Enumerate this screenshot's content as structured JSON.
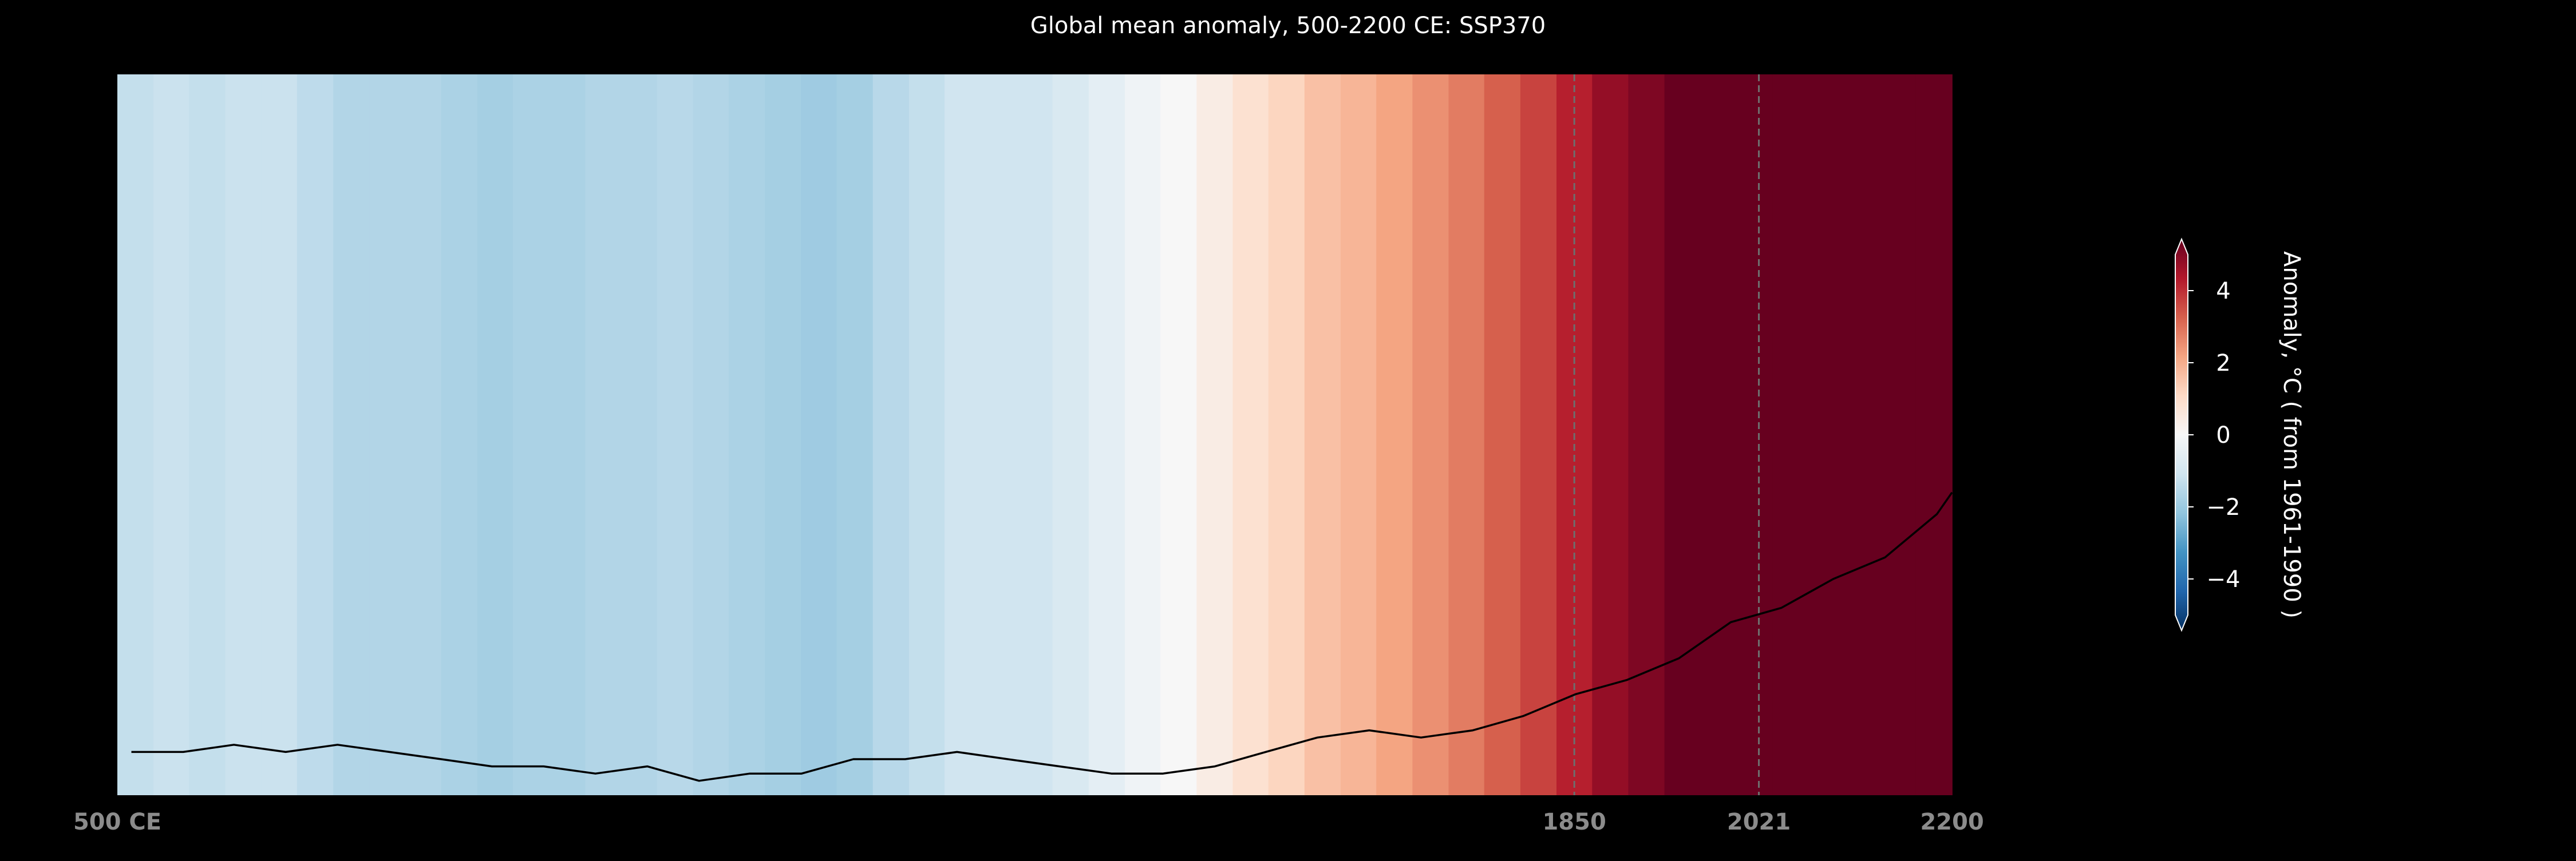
{
  "chart_data": {
    "type": "heatmap",
    "title": "Global mean anomaly, 500-2200 CE: SSP370",
    "x_tick_labels": [
      {
        "value": 500,
        "label": "500 CE"
      },
      {
        "value": 1850,
        "label": "1850"
      },
      {
        "value": 2021,
        "label": "2021"
      },
      {
        "value": 2200,
        "label": "2200"
      }
    ],
    "reference_lines": [
      1850,
      2021
    ],
    "bands": [
      {
        "year": 517,
        "value": -1.2
      },
      {
        "year": 550,
        "value": -1.1
      },
      {
        "year": 583,
        "value": -1.2
      },
      {
        "year": 617,
        "value": -1.1
      },
      {
        "year": 650,
        "value": -1.1
      },
      {
        "year": 683,
        "value": -1.3
      },
      {
        "year": 717,
        "value": -1.5
      },
      {
        "year": 750,
        "value": -1.5
      },
      {
        "year": 783,
        "value": -1.5
      },
      {
        "year": 817,
        "value": -1.6
      },
      {
        "year": 850,
        "value": -1.7
      },
      {
        "year": 883,
        "value": -1.6
      },
      {
        "year": 917,
        "value": -1.6
      },
      {
        "year": 950,
        "value": -1.5
      },
      {
        "year": 983,
        "value": -1.5
      },
      {
        "year": 1017,
        "value": -1.4
      },
      {
        "year": 1050,
        "value": -1.5
      },
      {
        "year": 1083,
        "value": -1.6
      },
      {
        "year": 1117,
        "value": -1.7
      },
      {
        "year": 1150,
        "value": -1.8
      },
      {
        "year": 1183,
        "value": -1.7
      },
      {
        "year": 1217,
        "value": -1.4
      },
      {
        "year": 1250,
        "value": -1.2
      },
      {
        "year": 1283,
        "value": -1.0
      },
      {
        "year": 1317,
        "value": -1.0
      },
      {
        "year": 1350,
        "value": -1.0
      },
      {
        "year": 1383,
        "value": -0.8
      },
      {
        "year": 1417,
        "value": -0.5
      },
      {
        "year": 1450,
        "value": -0.2
      },
      {
        "year": 1483,
        "value": 0.0
      },
      {
        "year": 1517,
        "value": 0.4
      },
      {
        "year": 1550,
        "value": 0.8
      },
      {
        "year": 1583,
        "value": 1.1
      },
      {
        "year": 1617,
        "value": 1.5
      },
      {
        "year": 1650,
        "value": 1.7
      },
      {
        "year": 1683,
        "value": 2.0
      },
      {
        "year": 1717,
        "value": 2.3
      },
      {
        "year": 1750,
        "value": 2.6
      },
      {
        "year": 1783,
        "value": 3.0
      },
      {
        "year": 1817,
        "value": 3.4
      },
      {
        "year": 1850,
        "value": 3.9
      },
      {
        "year": 1883,
        "value": 4.4
      },
      {
        "year": 1917,
        "value": 4.7
      },
      {
        "year": 1950,
        "value": 5.1
      },
      {
        "year": 1983,
        "value": 5.4
      },
      {
        "year": 2017,
        "value": 5.8
      },
      {
        "year": 2050,
        "value": 6.1
      },
      {
        "year": 2083,
        "value": 6.6
      },
      {
        "year": 2117,
        "value": 7.1
      },
      {
        "year": 2150,
        "value": 7.6
      },
      {
        "year": 2183,
        "value": 8.0
      }
    ],
    "series": [
      {
        "x": [
          513,
          561,
          608,
          656,
          704,
          752,
          800,
          847,
          895,
          943,
          991,
          1039,
          1086,
          1134,
          1182,
          1230,
          1278,
          1325,
          1373,
          1421,
          1469,
          1517,
          1564,
          1612,
          1660,
          1708,
          1756,
          1803,
          1851,
          1899,
          1947,
          1995,
          2042,
          2090,
          2138,
          2186,
          2200
        ],
        "y": [
          -4.4,
          -4.4,
          -4.3,
          -4.4,
          -4.3,
          -4.4,
          -4.5,
          -4.6,
          -4.6,
          -4.7,
          -4.6,
          -4.8,
          -4.7,
          -4.7,
          -4.5,
          -4.5,
          -4.4,
          -4.5,
          -4.6,
          -4.7,
          -4.7,
          -4.6,
          -4.4,
          -4.2,
          -4.1,
          -4.2,
          -4.1,
          -3.9,
          -3.6,
          -3.4,
          -3.1,
          -2.6,
          -2.4,
          -2.0,
          -1.7,
          -1.1,
          -0.8
        ],
        "color": "#000000"
      }
    ],
    "xlim": [
      500,
      2200
    ],
    "colorbar": {
      "label": "Anomaly, °C ( from 1961-1990 )",
      "ticks": [
        4,
        2,
        0,
        -2,
        -4
      ],
      "range": [
        -5,
        5
      ],
      "colormap": "RdBu_r",
      "extend": "both"
    }
  }
}
